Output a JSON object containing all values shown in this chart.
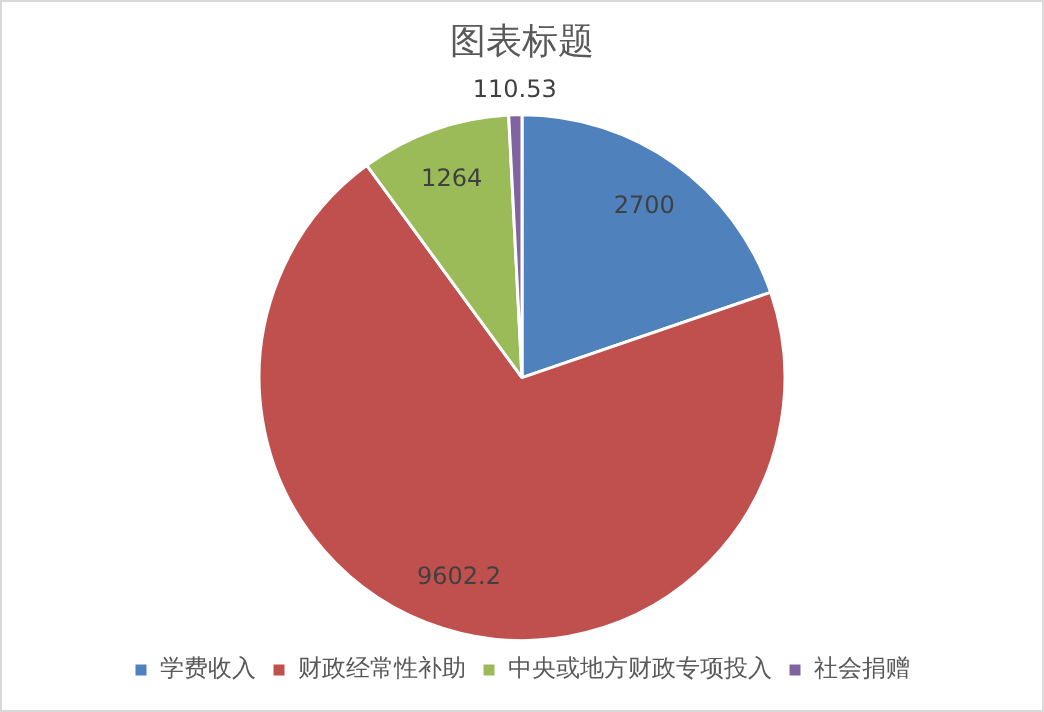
{
  "chart_data": {
    "type": "pie",
    "title": "图表标题",
    "categories": [
      "学费收入",
      "财政经常性补助",
      "中央或地方财政专项投入",
      "社会捐赠"
    ],
    "values": [
      2700,
      9602.2,
      1264,
      110.53
    ],
    "colors": [
      "#4f81bd",
      "#c0504d",
      "#9bbb59",
      "#8064a2"
    ],
    "data_labels": true,
    "legend": "bottom"
  }
}
